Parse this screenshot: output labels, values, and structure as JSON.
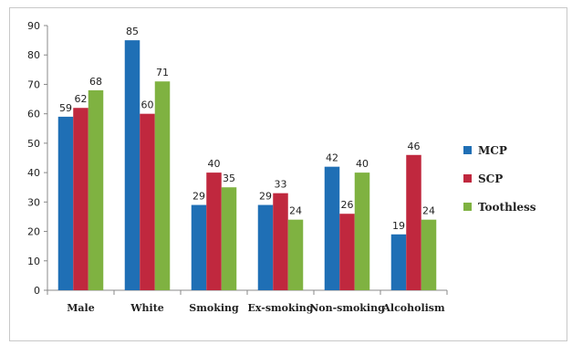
{
  "chart_data": {
    "type": "bar",
    "categories": [
      "Male",
      "White",
      "Smoking",
      "Ex-smoking",
      "Non-smoking",
      "Alcoholism"
    ],
    "series": [
      {
        "name": "MCP",
        "color": "#1f6fb5",
        "values": [
          59,
          85,
          29,
          29,
          42,
          19
        ]
      },
      {
        "name": "SCP",
        "color": "#c0283e",
        "values": [
          62,
          60,
          40,
          33,
          26,
          46
        ]
      },
      {
        "name": "Toothless",
        "color": "#7fb241",
        "values": [
          68,
          71,
          35,
          24,
          40,
          24
        ]
      }
    ],
    "ylim": [
      0,
      90
    ],
    "yticks": [
      0,
      10,
      20,
      30,
      40,
      50,
      60,
      70,
      80,
      90
    ],
    "title": "",
    "xlabel": "",
    "ylabel": "",
    "grid": false,
    "legend_position": "right",
    "data_labels": true
  }
}
